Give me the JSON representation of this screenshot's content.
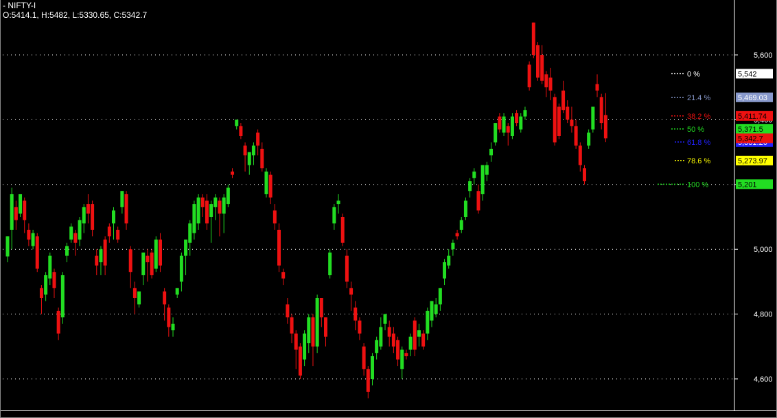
{
  "header": {
    "title": "- NIFTY-I",
    "ohlc": "O:5414.1, H:5482, L:5330.65, C:5342.7"
  },
  "colors": {
    "background": "#000000",
    "up_candle": "#22dd22",
    "down_candle": "#ee1111",
    "grid": "#ffffff",
    "axis_text": "#ffffff",
    "fib_0": "#ffffff",
    "fib_21_4": "#8899cc",
    "fib_38_2": "#ee1111",
    "fib_50": "#22dd22",
    "fib_61_8": "#2222ff",
    "fib_78_6": "#ffff00",
    "fib_100": "#22dd22"
  },
  "chart_data": {
    "type": "candlestick",
    "title": "",
    "xlabel": "",
    "ylabel": "",
    "ylim": [
      4505,
      5705
    ],
    "grid": true,
    "y_ticks": [
      {
        "value": 5600,
        "label": "5,600"
      },
      {
        "value": 5400,
        "label": "5,400"
      },
      {
        "value": 5200,
        "label": "5,200"
      },
      {
        "value": 5000,
        "label": "5,000"
      },
      {
        "value": 4800,
        "label": "4,800"
      },
      {
        "value": 4600,
        "label": "4,600"
      }
    ],
    "candles": [
      [
        4978,
        5040,
        5040,
        4960
      ],
      [
        5060,
        5170,
        5190,
        5000
      ],
      [
        5130,
        5090,
        5150,
        5060
      ],
      [
        5110,
        5170,
        5170,
        5100
      ],
      [
        5150,
        5090,
        5160,
        5050
      ],
      [
        5060,
        5030,
        5080,
        5010
      ],
      [
        5010,
        5050,
        5060,
        5000
      ],
      [
        5040,
        4940,
        5050,
        4930
      ],
      [
        4880,
        4850,
        4890,
        4800
      ],
      [
        4860,
        4920,
        4930,
        4840
      ],
      [
        4910,
        4980,
        4990,
        4890
      ],
      [
        4930,
        4880,
        4940,
        4850
      ],
      [
        4810,
        4740,
        4820,
        4720
      ],
      [
        4790,
        4920,
        4930,
        4770
      ],
      [
        4980,
        5010,
        5020,
        4960
      ],
      [
        5030,
        5070,
        5080,
        5020
      ],
      [
        5050,
        5020,
        5060,
        4980
      ],
      [
        5030,
        5090,
        5100,
        5010
      ],
      [
        5080,
        5130,
        5140,
        5050
      ],
      [
        5140,
        5110,
        5170,
        5080
      ],
      [
        5140,
        5060,
        5150,
        5040
      ],
      [
        4980,
        4950,
        5000,
        4920
      ],
      [
        4960,
        5000,
        5010,
        4920
      ],
      [
        5030,
        4950,
        5040,
        4920
      ],
      [
        5070,
        5040,
        5080,
        5020
      ],
      [
        5080,
        5120,
        5130,
        5030
      ],
      [
        5060,
        5030,
        5070,
        5020
      ],
      [
        5130,
        5180,
        5180,
        5110
      ],
      [
        5170,
        5080,
        5180,
        5060
      ],
      [
        5000,
        4930,
        5010,
        4880
      ],
      [
        4880,
        4850,
        4900,
        4800
      ],
      [
        4830,
        4870,
        4870,
        4820
      ],
      [
        4920,
        4990,
        4990,
        4890
      ],
      [
        4980,
        4960,
        5000,
        4900
      ],
      [
        4990,
        4920,
        5000,
        4910
      ],
      [
        4940,
        5030,
        5040,
        4930
      ],
      [
        5030,
        4950,
        5050,
        4930
      ],
      [
        4870,
        4830,
        4880,
        4780
      ],
      [
        4820,
        4760,
        4830,
        4730
      ],
      [
        4750,
        4770,
        4790,
        4730
      ],
      [
        4860,
        4880,
        4880,
        4850
      ],
      [
        4900,
        4980,
        4990,
        4870
      ],
      [
        4980,
        5030,
        5030,
        4920
      ],
      [
        5020,
        5080,
        5090,
        4980
      ],
      [
        5050,
        5140,
        5150,
        5030
      ],
      [
        5080,
        5160,
        5170,
        5060
      ],
      [
        5160,
        5130,
        5170,
        5100
      ],
      [
        5150,
        5080,
        5170,
        5060
      ],
      [
        5100,
        5140,
        5150,
        5020
      ],
      [
        5130,
        5160,
        5170,
        5090
      ],
      [
        5150,
        5110,
        5160,
        5040
      ],
      [
        5110,
        5160,
        5170,
        5050
      ],
      [
        5140,
        5190,
        5200,
        5130
      ],
      [
        5240,
        5230,
        5250,
        5220
      ],
      [
        5380,
        5400,
        5400,
        5370
      ],
      [
        5380,
        5350,
        5390,
        5340
      ],
      [
        5320,
        5290,
        5330,
        5240
      ],
      [
        5260,
        5300,
        5300,
        5230
      ],
      [
        5290,
        5320,
        5330,
        5260
      ],
      [
        5360,
        5320,
        5370,
        5290
      ],
      [
        5310,
        5250,
        5330,
        5240
      ],
      [
        5170,
        5240,
        5250,
        5160
      ],
      [
        5230,
        5160,
        5240,
        5140
      ],
      [
        5120,
        5080,
        5140,
        5060
      ],
      [
        5060,
        4950,
        5080,
        4930
      ],
      [
        4930,
        4910,
        4940,
        4890
      ],
      [
        4830,
        4790,
        4850,
        4770
      ],
      [
        4790,
        4740,
        4800,
        4710
      ],
      [
        4740,
        4690,
        4750,
        4630
      ],
      [
        4700,
        4610,
        4710,
        4600
      ],
      [
        4660,
        4740,
        4750,
        4640
      ],
      [
        4710,
        4790,
        4800,
        4680
      ],
      [
        4790,
        4700,
        4800,
        4640
      ],
      [
        4700,
        4850,
        4860,
        4680
      ],
      [
        4850,
        4790,
        4850,
        4760
      ],
      [
        4790,
        4730,
        4790,
        4700
      ],
      [
        4920,
        4990,
        5000,
        4910
      ],
      [
        5080,
        5130,
        5140,
        5060
      ],
      [
        5140,
        5150,
        5170,
        5110
      ],
      [
        5100,
        5020,
        5110,
        5010
      ],
      [
        4980,
        4900,
        5000,
        4880
      ],
      [
        4880,
        4860,
        4900,
        4810
      ],
      [
        4820,
        4780,
        4840,
        4750
      ],
      [
        4780,
        4740,
        4790,
        4720
      ],
      [
        4700,
        4630,
        4710,
        4610
      ],
      [
        4630,
        4560,
        4640,
        4540
      ],
      [
        4600,
        4670,
        4680,
        4580
      ],
      [
        4680,
        4720,
        4730,
        4660
      ],
      [
        4700,
        4760,
        4790,
        4690
      ],
      [
        4770,
        4800,
        4800,
        4750
      ],
      [
        4760,
        4730,
        4780,
        4700
      ],
      [
        4740,
        4700,
        4760,
        4680
      ],
      [
        4720,
        4660,
        4730,
        4640
      ],
      [
        4630,
        4690,
        4700,
        4600
      ],
      [
        4680,
        4670,
        4690,
        4660
      ],
      [
        4690,
        4730,
        4740,
        4670
      ],
      [
        4780,
        4690,
        4790,
        4670
      ],
      [
        4730,
        4750,
        4770,
        4700
      ],
      [
        4740,
        4700,
        4750,
        4690
      ],
      [
        4740,
        4810,
        4820,
        4720
      ],
      [
        4780,
        4840,
        4840,
        4760
      ],
      [
        4800,
        4830,
        4850,
        4790
      ],
      [
        4830,
        4880,
        4880,
        4810
      ],
      [
        4910,
        4960,
        4970,
        4890
      ],
      [
        4950,
        4980,
        5000,
        4940
      ],
      [
        5000,
        5020,
        5030,
        4980
      ],
      [
        5050,
        5040,
        5060,
        5030
      ],
      [
        5060,
        5090,
        5100,
        5050
      ],
      [
        5100,
        5150,
        5160,
        5090
      ],
      [
        5180,
        5210,
        5220,
        5160
      ],
      [
        5220,
        5240,
        5250,
        5200
      ],
      [
        5180,
        5120,
        5200,
        5110
      ],
      [
        5170,
        5260,
        5260,
        5150
      ],
      [
        5230,
        5260,
        5270,
        5210
      ],
      [
        5290,
        5310,
        5330,
        5270
      ],
      [
        5330,
        5390,
        5390,
        5320
      ],
      [
        5410,
        5370,
        5420,
        5360
      ],
      [
        5360,
        5410,
        5420,
        5350
      ],
      [
        5380,
        5360,
        5390,
        5320
      ],
      [
        5350,
        5410,
        5420,
        5340
      ],
      [
        5420,
        5390,
        5430,
        5380
      ],
      [
        5370,
        5410,
        5420,
        5360
      ],
      [
        5410,
        5430,
        5440,
        5400
      ],
      [
        5570,
        5500,
        5580,
        5490
      ],
      [
        5700,
        5600,
        5700,
        5590
      ],
      [
        5630,
        5530,
        5640,
        5520
      ],
      [
        5600,
        5520,
        5630,
        5510
      ],
      [
        5540,
        5500,
        5550,
        5470
      ],
      [
        5530,
        5490,
        5560,
        5460
      ],
      [
        5470,
        5330,
        5480,
        5320
      ],
      [
        5440,
        5350,
        5450,
        5340
      ],
      [
        5490,
        5430,
        5520,
        5420
      ],
      [
        5440,
        5400,
        5460,
        5390
      ],
      [
        5400,
        5380,
        5440,
        5360
      ],
      [
        5380,
        5320,
        5400,
        5310
      ],
      [
        5320,
        5260,
        5330,
        5240
      ],
      [
        5250,
        5210,
        5260,
        5200
      ],
      [
        5320,
        5360,
        5370,
        5310
      ],
      [
        5370,
        5440,
        5440,
        5360
      ],
      [
        5510,
        5490,
        5540,
        5470
      ],
      [
        5470,
        5390,
        5480,
        5370
      ],
      [
        5414.1,
        5342.7,
        5482,
        5330.65
      ]
    ],
    "fibonacci": [
      {
        "label": "0 %",
        "value": 5542,
        "value_label": "5,542"
      },
      {
        "label": "21.4 %",
        "value": 5469.03,
        "value_label": "5,469.03"
      },
      {
        "label": "38.2 %",
        "value": 5411.74,
        "value_label": "5,411.74"
      },
      {
        "label": "50 %",
        "value": 5371.5,
        "value_label": "5,371.5"
      },
      {
        "label": "61.8 %",
        "value": 5331.26,
        "value_label": "5,331.26"
      },
      {
        "label": "78.6 %",
        "value": 5273.97,
        "value_label": "5,273.97"
      },
      {
        "label": "100 %",
        "value": 5201,
        "value_label": "5,201"
      }
    ],
    "last_close_label": "5,342.7",
    "last_close_value": 5342.7
  }
}
